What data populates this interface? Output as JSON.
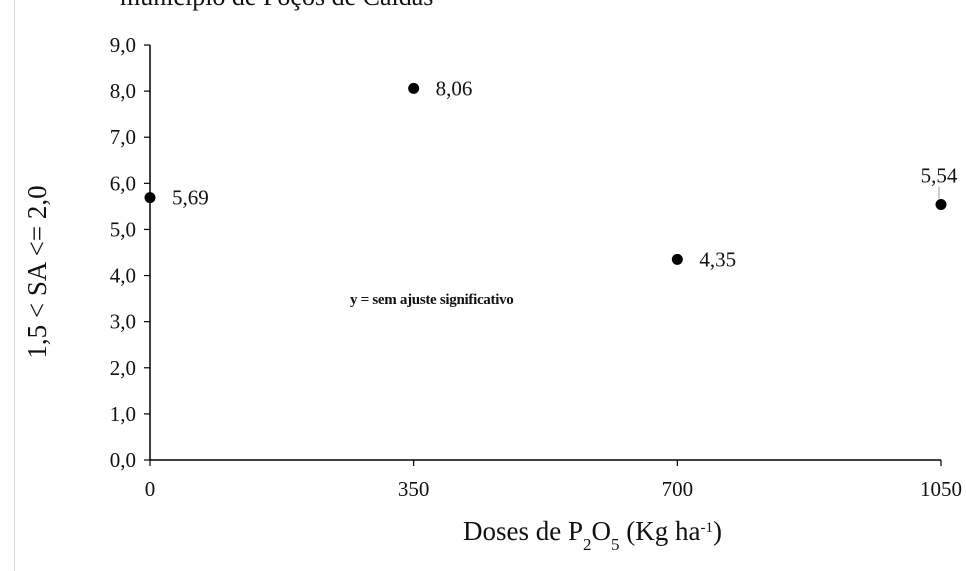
{
  "caption_fragment": "município de Poços de Caldas",
  "chart_data": {
    "type": "scatter",
    "x": [
      0,
      350,
      700,
      1050
    ],
    "y": [
      5.69,
      8.06,
      4.35,
      5.54
    ],
    "data_labels": [
      "5,69",
      "8,06",
      "4,35",
      "5,54"
    ],
    "xlim": [
      0,
      1050
    ],
    "ylim": [
      0,
      9
    ],
    "x_ticks": [
      0,
      350,
      700,
      1050
    ],
    "x_tick_labels": [
      "0",
      "350",
      "700",
      "1050"
    ],
    "y_ticks": [
      0,
      1,
      2,
      3,
      4,
      5,
      6,
      7,
      8,
      9
    ],
    "y_tick_labels": [
      "0,0",
      "1,0",
      "2,0",
      "3,0",
      "4,0",
      "5,0",
      "6,0",
      "7,0",
      "8,0",
      "9,0"
    ],
    "xlabel_parts": {
      "prefix": "Doses de P",
      "sub1": "2",
      "mid": "O",
      "sub2": "5",
      "suffix": " (Kg ha",
      "sup": "-1",
      "end": ")"
    },
    "ylabel": "1,5 <  SA <= 2,0",
    "annotation": "y = sem ajuste significativo",
    "grid": false,
    "legend": "none",
    "marker_color": "#000000"
  }
}
